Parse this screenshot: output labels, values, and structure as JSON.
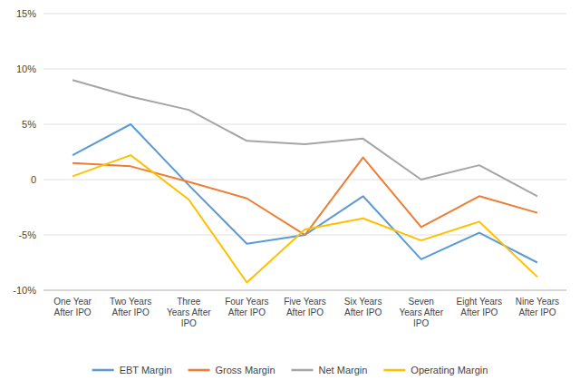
{
  "chart_data": {
    "type": "line",
    "categories": [
      "One Year\nAfter IPO",
      "Two Years\nAfter IPO",
      "Three\nYears After\nIPO",
      "Four Years\nAfter IPO",
      "Five Years\nAfter IPO",
      "Six Years\nAfter IPO",
      "Seven\nYears After\nIPO",
      "Eight Years\nAfter IPO",
      "Nine Years\nAfter IPO"
    ],
    "series": [
      {
        "name": "EBT Margin",
        "color": "#5b9bd5",
        "values": [
          2.2,
          5.0,
          -0.5,
          -5.8,
          -5.0,
          -1.5,
          -7.2,
          -4.8,
          -7.5
        ]
      },
      {
        "name": "Gross Margin",
        "color": "#ed7d31",
        "values": [
          1.5,
          1.2,
          -0.2,
          -1.7,
          -5.0,
          2.0,
          -4.3,
          -1.5,
          -3.0
        ]
      },
      {
        "name": "Net Margin",
        "color": "#a5a5a5",
        "values": [
          9.0,
          7.5,
          6.3,
          3.5,
          3.2,
          3.7,
          0.0,
          1.3,
          -1.5
        ]
      },
      {
        "name": "Operating Margin",
        "color": "#ffc000",
        "values": [
          0.3,
          2.2,
          -1.8,
          -9.3,
          -4.5,
          -3.5,
          -5.5,
          -3.8,
          -8.8
        ]
      }
    ],
    "ylim": [
      -10,
      15
    ],
    "yticks": [
      {
        "value": -10,
        "label": "-10%"
      },
      {
        "value": -5,
        "label": "-5%"
      },
      0,
      {
        "value": 5,
        "label": "5%"
      },
      {
        "value": 10,
        "label": "10%"
      },
      {
        "value": 15,
        "label": "15%"
      }
    ],
    "grid": true,
    "legend": "bottom"
  }
}
